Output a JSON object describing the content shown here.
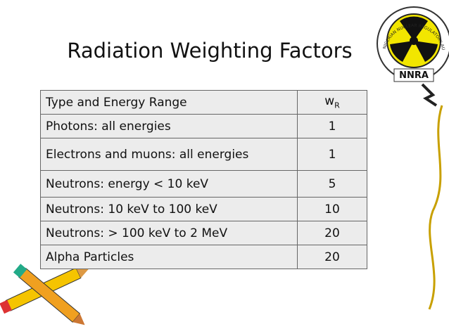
{
  "title": "Radiation Weighting Factors",
  "logo": {
    "label": "NNRA",
    "ring": "NIGERIAN NUCLEAR REGULATORY AUTHORITY"
  },
  "table": {
    "header": [
      "Type and Energy Range",
      {
        "main": "w",
        "sub": "R"
      }
    ],
    "rows": [
      [
        "Photons: all energies",
        1
      ],
      [
        "Electrons and muons: all energies",
        1
      ],
      [
        "Neutrons: energy < 10 keV",
        5
      ],
      [
        "Neutrons: 10 keV to 100 keV",
        10
      ],
      [
        "Neutrons: > 100 keV to 2 MeV",
        20
      ],
      [
        "Alpha Particles",
        20
      ]
    ]
  }
}
